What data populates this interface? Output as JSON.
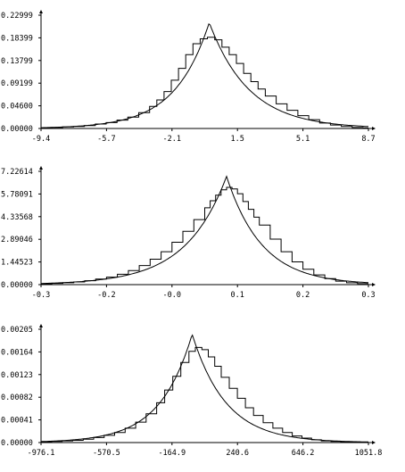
{
  "chart_data": [
    {
      "type": "line",
      "title": "",
      "xlabel": "",
      "ylabel": "",
      "x_ticks": [
        "-9.4",
        "-5.7",
        "-2.1",
        "1.5",
        "5.1",
        "8.7"
      ],
      "y_ticks": [
        "0.00000",
        "0.04600",
        "0.09199",
        "0.13799",
        "0.18399",
        "0.22999"
      ],
      "xlim": [
        -9.4,
        8.7
      ],
      "ylim": [
        0,
        0.22999
      ],
      "grid": false,
      "series": [
        {
          "kind": "histogram-step",
          "x": [
            -9.4,
            -8.8,
            -8.2,
            -7.6,
            -7.0,
            -6.4,
            -5.8,
            -5.2,
            -4.6,
            -4.0,
            -3.4,
            -3.0,
            -2.6,
            -2.2,
            -1.8,
            -1.4,
            -1.0,
            -0.6,
            -0.2,
            0.2,
            0.6,
            1.0,
            1.4,
            1.8,
            2.2,
            2.6,
            3.0,
            3.6,
            4.2,
            4.8,
            5.4,
            6.0,
            6.6,
            7.2,
            7.8,
            8.4
          ],
          "y": [
            0.001,
            0.002,
            0.003,
            0.004,
            0.006,
            0.009,
            0.012,
            0.017,
            0.023,
            0.032,
            0.045,
            0.058,
            0.075,
            0.098,
            0.122,
            0.15,
            0.172,
            0.182,
            0.185,
            0.18,
            0.165,
            0.15,
            0.132,
            0.112,
            0.095,
            0.08,
            0.066,
            0.05,
            0.037,
            0.026,
            0.018,
            0.011,
            0.007,
            0.004,
            0.002,
            0.001
          ]
        },
        {
          "kind": "fitted-curve",
          "peak_x": -0.1,
          "peak_y": 0.215,
          "scale_left": 1.9,
          "scale_right": 2.2
        }
      ]
    },
    {
      "type": "line",
      "title": "",
      "xlabel": "",
      "ylabel": "",
      "x_ticks": [
        "-0.3",
        "-0.2",
        "-0.0",
        "0.1",
        "0.2",
        "0.3"
      ],
      "y_ticks": [
        "0.00000",
        "1.44523",
        "2.89046",
        "4.33568",
        "5.78091",
        "7.22614"
      ],
      "xlim": [
        -0.3,
        0.3
      ],
      "ylim": [
        0,
        7.22614
      ],
      "grid": false,
      "series": [
        {
          "kind": "histogram-step",
          "x": [
            -0.3,
            -0.28,
            -0.26,
            -0.24,
            -0.22,
            -0.2,
            -0.18,
            -0.16,
            -0.14,
            -0.12,
            -0.1,
            -0.08,
            -0.06,
            -0.04,
            -0.02,
            0.0,
            0.01,
            0.02,
            0.03,
            0.04,
            0.05,
            0.06,
            0.07,
            0.08,
            0.09,
            0.1,
            0.12,
            0.14,
            0.16,
            0.18,
            0.2,
            0.22,
            0.24,
            0.26,
            0.28
          ],
          "y": [
            0.05,
            0.08,
            0.12,
            0.17,
            0.25,
            0.35,
            0.48,
            0.66,
            0.9,
            1.22,
            1.62,
            2.1,
            2.7,
            3.4,
            4.15,
            4.9,
            5.35,
            5.7,
            6.05,
            6.2,
            6.1,
            5.8,
            5.3,
            4.8,
            4.3,
            3.8,
            2.9,
            2.1,
            1.45,
            0.98,
            0.62,
            0.38,
            0.22,
            0.12,
            0.06
          ]
        },
        {
          "kind": "fitted-curve",
          "peak_x": 0.04,
          "peak_y": 6.9,
          "scale_left": 0.075,
          "scale_right": 0.065
        }
      ]
    },
    {
      "type": "line",
      "title": "",
      "xlabel": "",
      "ylabel": "",
      "x_ticks": [
        "-976.1",
        "-570.5",
        "-164.9",
        "240.6",
        "646.2",
        "1051.8"
      ],
      "y_ticks": [
        "0.00000",
        "0.00041",
        "0.00082",
        "0.00123",
        "0.00164",
        "0.00205"
      ],
      "xlim": [
        -976.1,
        1051.8
      ],
      "ylim": [
        0,
        0.00205
      ],
      "grid": false,
      "series": [
        {
          "kind": "histogram-step",
          "x": [
            -976,
            -910,
            -845,
            -780,
            -715,
            -650,
            -585,
            -520,
            -455,
            -390,
            -325,
            -260,
            -210,
            -160,
            -110,
            -60,
            -20,
            20,
            60,
            100,
            140,
            190,
            240,
            290,
            340,
            400,
            460,
            520,
            580,
            640,
            700,
            760,
            820,
            880,
            940,
            1000
          ],
          "y": [
            1e-05,
            2e-05,
            3e-05,
            4e-05,
            6e-05,
            9e-05,
            0.00013,
            0.00018,
            0.00026,
            0.00037,
            0.00052,
            0.00072,
            0.00095,
            0.0012,
            0.00145,
            0.00165,
            0.00172,
            0.00168,
            0.00155,
            0.00138,
            0.00118,
            0.00098,
            0.0008,
            0.00063,
            0.00049,
            0.00036,
            0.00026,
            0.00018,
            0.00012,
            8e-05,
            5e-05,
            3e-05,
            2e-05,
            1e-05,
            1e-05,
            5e-06
          ]
        },
        {
          "kind": "fitted-curve",
          "peak_x": -40,
          "peak_y": 0.00196,
          "scale_left": 200,
          "scale_right": 210
        }
      ]
    }
  ]
}
